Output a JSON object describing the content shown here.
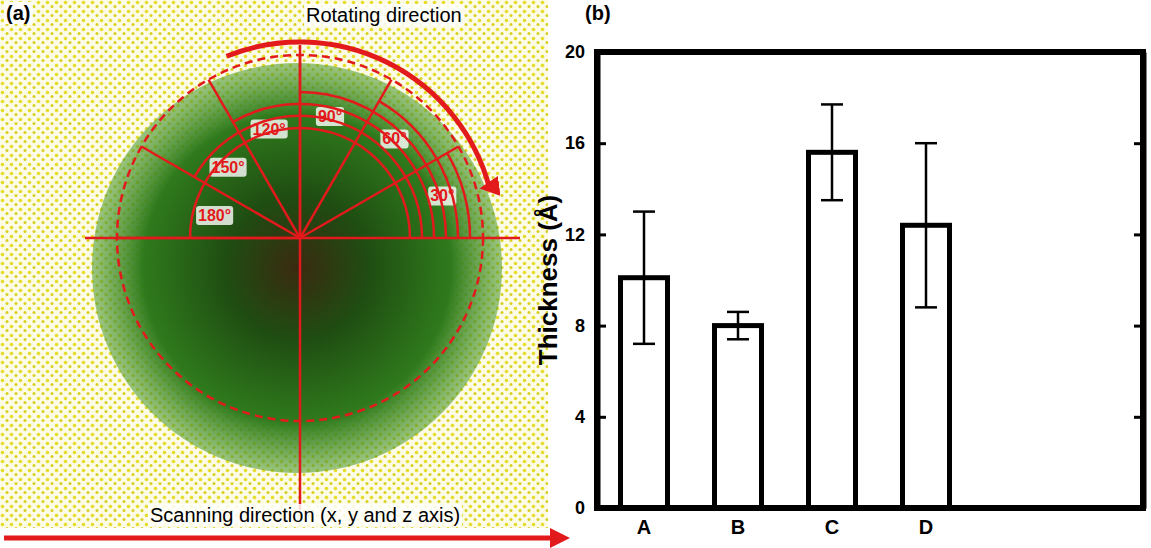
{
  "chart_data": {
    "type": "bar",
    "title": "(b)",
    "y_label": "Thickness (Å)",
    "categories": [
      "A",
      "B",
      "C",
      "D"
    ],
    "values": [
      10.1,
      8.0,
      15.6,
      12.4
    ],
    "errors": [
      2.9,
      0.6,
      2.1,
      3.6
    ],
    "color": "#ffffff",
    "ylim": [
      0,
      20
    ],
    "yticks": [
      0,
      4,
      8,
      12,
      16,
      20
    ],
    "grid": false
  },
  "diagram": {
    "panel_label": "(a)",
    "rotating_label": "Rotating direction",
    "angles": [
      {
        "value": 30,
        "label": "30°"
      },
      {
        "value": 60,
        "label": "60°"
      },
      {
        "value": 90,
        "label": "90°"
      },
      {
        "value": 120,
        "label": "120°"
      },
      {
        "value": 150,
        "label": "150°"
      },
      {
        "value": 180,
        "label": "180°"
      }
    ],
    "scanning_label": "Scanning direction (x, y and z axis)"
  }
}
